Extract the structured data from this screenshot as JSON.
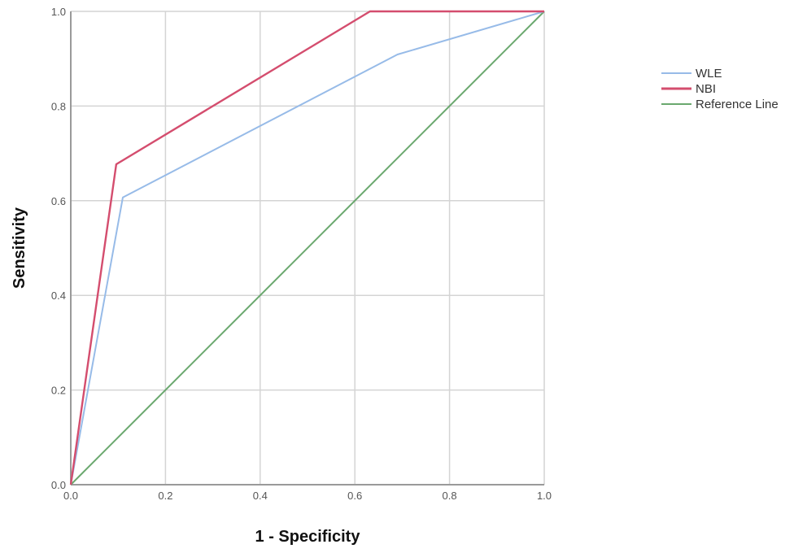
{
  "chart_data": {
    "type": "line",
    "title": "",
    "xlabel": "1 - Specificity",
    "ylabel": "Sensitivity",
    "xlim": [
      0,
      1
    ],
    "ylim": [
      0,
      1
    ],
    "grid": true,
    "legend_position": "right",
    "xticks": [
      "0.0",
      "0.2",
      "0.4",
      "0.6",
      "0.8",
      "1.0"
    ],
    "yticks": [
      "0.0",
      "0.2",
      "0.4",
      "0.6",
      "0.8",
      "1.0"
    ],
    "series": [
      {
        "name": "WLE",
        "color": "#97bbe8",
        "points": [
          [
            0.0,
            0.0
          ],
          [
            0.11,
            0.607
          ],
          [
            0.69,
            0.909
          ],
          [
            1.0,
            1.0
          ]
        ]
      },
      {
        "name": "NBI",
        "color": "#d44d6e",
        "points": [
          [
            0.0,
            0.0
          ],
          [
            0.096,
            0.677
          ],
          [
            0.632,
            1.0
          ],
          [
            1.0,
            1.0
          ]
        ]
      },
      {
        "name": "Reference Line",
        "color": "#6aa86e",
        "points": [
          [
            0.0,
            0.0
          ],
          [
            1.0,
            1.0
          ]
        ]
      }
    ]
  },
  "colors": {
    "grid": "#d4d4d4",
    "axis": "#9a9a9a"
  }
}
